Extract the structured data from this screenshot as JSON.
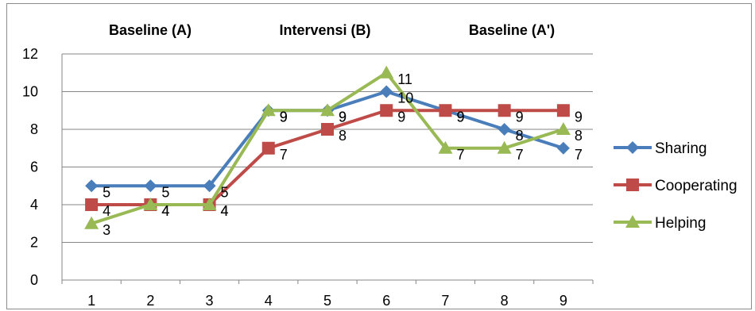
{
  "chart_data": {
    "type": "line",
    "categories": [
      "1",
      "2",
      "3",
      "4",
      "5",
      "6",
      "7",
      "8",
      "9"
    ],
    "series": [
      {
        "name": "Sharing",
        "values": [
          5,
          5,
          5,
          9,
          9,
          10,
          9,
          8,
          7
        ],
        "color": "#4a7ebb",
        "marker": "diamond"
      },
      {
        "name": "Cooperating",
        "values": [
          4,
          4,
          4,
          7,
          8,
          9,
          9,
          9,
          9
        ],
        "color": "#be4b48",
        "marker": "square"
      },
      {
        "name": "Helping",
        "values": [
          3,
          4,
          4,
          9,
          9,
          11,
          7,
          7,
          8
        ],
        "color": "#98b954",
        "marker": "triangle"
      }
    ],
    "phases": [
      "Baseline (A)",
      "Intervensi (B)",
      "Baseline (A')"
    ],
    "y_ticks": [
      "0",
      "2",
      "4",
      "6",
      "8",
      "10",
      "12"
    ],
    "ylim": [
      0,
      12
    ],
    "grid": true,
    "legend_position": "right"
  }
}
